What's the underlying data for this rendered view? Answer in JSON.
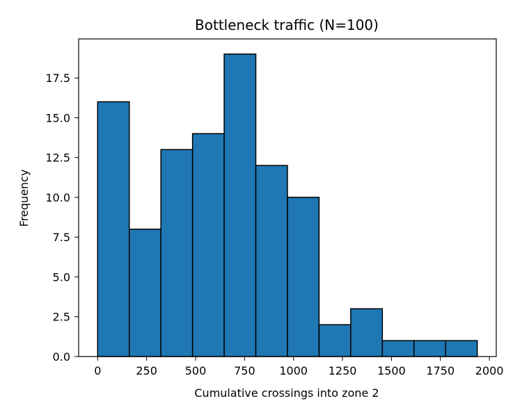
{
  "chart_data": {
    "type": "bar",
    "title": "Bottleneck traffic  (N=100)",
    "xlabel": "Cumulative crossings into zone 2",
    "ylabel": "Frequency",
    "bin_edges": [
      0,
      161.5,
      323,
      484.5,
      646,
      807.5,
      969,
      1130.5,
      1292,
      1453.5,
      1615,
      1776.5,
      1938
    ],
    "values": [
      16,
      8,
      13,
      14,
      19,
      12,
      10,
      2,
      3,
      1,
      1,
      1
    ],
    "xlim": [
      -97,
      2035
    ],
    "ylim": [
      0,
      19.95
    ],
    "x_ticks": [
      0,
      250,
      500,
      750,
      1000,
      1250,
      1500,
      1750,
      2000
    ],
    "x_tick_labels": [
      "0",
      "250",
      "500",
      "750",
      "1000",
      "1250",
      "1500",
      "1750",
      "2000"
    ],
    "y_ticks": [
      0,
      2.5,
      5,
      7.5,
      10,
      12.5,
      15,
      17.5
    ],
    "y_tick_labels": [
      "0.0",
      "2.5",
      "5.0",
      "7.5",
      "10.0",
      "12.5",
      "15.0",
      "17.5"
    ],
    "bar_color": "#1f77b4",
    "edge_color": "#000000",
    "grid": false
  }
}
